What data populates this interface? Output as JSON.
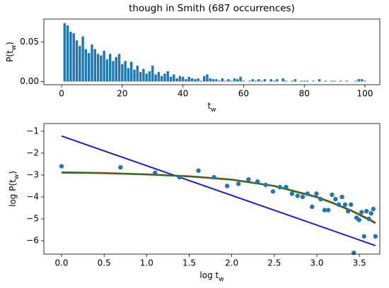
{
  "chart_data": [
    {
      "type": "bar",
      "title": "though in Smith (687 occurrences)",
      "xlabel": [
        "t",
        "w"
      ],
      "ylabel": [
        "P(t",
        "w",
        ")"
      ],
      "color": "#1f77b4",
      "x": [
        1,
        2,
        3,
        4,
        5,
        6,
        7,
        8,
        9,
        10,
        11,
        12,
        13,
        14,
        15,
        16,
        17,
        18,
        19,
        20,
        21,
        22,
        23,
        24,
        25,
        26,
        27,
        28,
        29,
        30,
        31,
        32,
        33,
        34,
        35,
        36,
        37,
        38,
        39,
        40,
        41,
        42,
        43,
        44,
        45,
        46,
        47,
        48,
        49,
        50,
        51,
        52,
        53,
        54,
        55,
        56,
        57,
        58,
        59,
        60,
        61,
        62,
        63,
        64,
        65,
        66,
        67,
        68,
        69,
        70,
        71,
        72,
        73,
        74,
        75,
        76,
        77,
        78,
        79,
        80,
        81,
        82,
        83,
        84,
        85,
        86,
        87,
        88,
        89,
        90,
        91,
        92,
        93,
        94,
        95,
        96,
        97,
        98,
        99,
        100
      ],
      "values": [
        0.074,
        0.071,
        0.063,
        0.061,
        0.052,
        0.045,
        0.057,
        0.041,
        0.036,
        0.047,
        0.041,
        0.035,
        0.033,
        0.039,
        0.028,
        0.035,
        0.026,
        0.031,
        0.035,
        0.022,
        0.026,
        0.017,
        0.025,
        0.015,
        0.02,
        0.012,
        0.016,
        0.01,
        0.013,
        0.02,
        0.009,
        0.012,
        0.007,
        0.01,
        0.013,
        0.006,
        0.009,
        0.004,
        0.007,
        0.006,
        0.003,
        0.006,
        0.004,
        0.003,
        0.004,
        0.001,
        0.007,
        0.009,
        0.004,
        0.003,
        0.003,
        0.001,
        0.004,
        0.001,
        0.003,
        0.001,
        0.004,
        0.003,
        0.006,
        0.001,
        0,
        0.001,
        0.003,
        0.001,
        0.003,
        0.001,
        0.003,
        0,
        0.003,
        0.001,
        0.003,
        0,
        0.004,
        0.001,
        0,
        0.001,
        0.003,
        0,
        0.001,
        0.001,
        0.001,
        0,
        0.001,
        0,
        0.003,
        0,
        0.001,
        0,
        0.001,
        0.001,
        0,
        0.001,
        0,
        0.001,
        0,
        0,
        0.001,
        0.003,
        0.003,
        0.001
      ],
      "xlim": [
        -5.85,
        104.9
      ],
      "xticks": [
        0,
        20,
        40,
        60,
        80,
        100
      ],
      "ylim": [
        -0.004,
        0.079
      ],
      "yticks": [
        {
          "value": 0,
          "label": "0.00"
        },
        {
          "value": 0.05,
          "label": "0.05"
        }
      ]
    },
    {
      "type": "scatter",
      "xlabel": [
        "log t",
        "w"
      ],
      "ylabel": [
        "log P(t",
        "w",
        ")"
      ],
      "xlim": [
        -0.208,
        3.74
      ],
      "xticks": [
        {
          "value": 0,
          "label": "0.0"
        },
        0.5,
        {
          "value": 1,
          "label": "1.0"
        },
        1.5,
        {
          "value": 2,
          "label": "2.0"
        },
        2.5,
        {
          "value": 3,
          "label": "3.0"
        },
        3.5
      ],
      "ylim": [
        -6.61,
        -0.65
      ],
      "yticks": [
        {
          "value": -1,
          "label": "−1"
        },
        {
          "value": -2,
          "label": "−2"
        },
        {
          "value": -3,
          "label": "−3"
        },
        {
          "value": -4,
          "label": "−4"
        },
        {
          "value": -5,
          "label": "−5"
        },
        {
          "value": -6,
          "label": "−6"
        }
      ],
      "series": [
        {
          "type": "scatter",
          "color": "#1f77b4",
          "x": [
            0,
            0.693,
            1.099,
            1.386,
            1.609,
            1.792,
            1.946,
            2.079,
            2.197,
            2.303,
            2.398,
            2.485,
            2.565,
            2.639,
            2.708,
            2.773,
            2.833,
            2.89,
            2.944,
            2.996,
            3.045,
            3.091,
            3.135,
            3.178,
            3.219,
            3.258,
            3.296,
            3.332,
            3.367,
            3.401,
            3.434,
            3.466,
            3.497,
            3.526,
            3.555,
            3.584,
            3.611,
            3.638,
            3.664,
            3.689
          ],
          "values": [
            -2.6,
            -2.65,
            -2.9,
            -3.1,
            -2.8,
            -3.1,
            -3.5,
            -3.4,
            -3.2,
            -3.3,
            -3.45,
            -3.75,
            -3.55,
            -3.55,
            -3.85,
            -3.95,
            -4.0,
            -3.85,
            -4.45,
            -3.85,
            -4.1,
            -4.6,
            -4.6,
            -3.9,
            -4.1,
            -4.35,
            -4.0,
            -4.35,
            -4.65,
            -4.35,
            -6.55,
            -4.95,
            -5.05,
            -4.7,
            -5.8,
            -4.65,
            -5.0,
            -4.75,
            -4.55,
            -5.8
          ]
        },
        {
          "type": "line",
          "color": "#1a1adb",
          "x": [
            0,
            3.689
          ],
          "values": [
            -1.22,
            -6.22
          ]
        },
        {
          "type": "line",
          "color": "#d62020",
          "x": [
            0,
            0.5,
            1,
            1.5,
            2,
            2.5,
            3,
            3.2,
            3.4,
            3.6,
            3.689
          ],
          "values": [
            -2.87,
            -2.9,
            -2.96,
            -3.05,
            -3.2,
            -3.49,
            -3.99,
            -4.28,
            -4.6,
            -4.98,
            -5.17
          ]
        },
        {
          "type": "line",
          "color": "#1e7a10",
          "x": [
            0,
            0.5,
            1,
            1.5,
            2,
            2.5,
            3,
            3.2,
            3.4,
            3.6,
            3.689
          ],
          "values": [
            -2.9,
            -2.92,
            -2.98,
            -3.07,
            -3.22,
            -3.51,
            -4.02,
            -4.31,
            -4.63,
            -5.02,
            -5.21
          ]
        }
      ]
    }
  ]
}
